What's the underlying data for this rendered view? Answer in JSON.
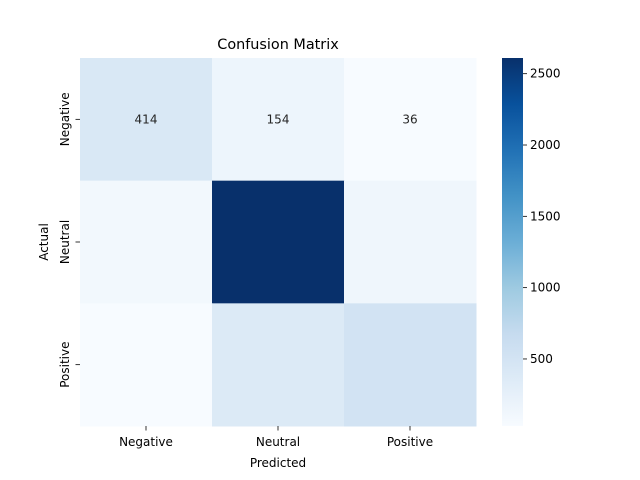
{
  "chart_data": {
    "type": "heatmap",
    "title": "Confusion Matrix",
    "xlabel": "Predicted",
    "ylabel": "Actual",
    "x_categories": [
      "Negative",
      "Neutral",
      "Positive"
    ],
    "y_categories": [
      "Negative",
      "Neutral",
      "Positive"
    ],
    "values": [
      [
        414,
        154,
        36
      ],
      [
        100,
        2610,
        135
      ],
      [
        30,
        380,
        520
      ]
    ],
    "annotations": [
      [
        "414",
        "154",
        "36"
      ],
      [
        "",
        "",
        ""
      ],
      [
        "",
        "",
        ""
      ]
    ],
    "colormap": "Blues",
    "vmin": 30,
    "vmax": 2610,
    "colorbar_ticks": [
      500,
      1000,
      1500,
      2000,
      2500
    ],
    "grid": false,
    "colors": {
      "cmap_low": "#f7fbff",
      "cmap_high": "#08306b"
    }
  }
}
